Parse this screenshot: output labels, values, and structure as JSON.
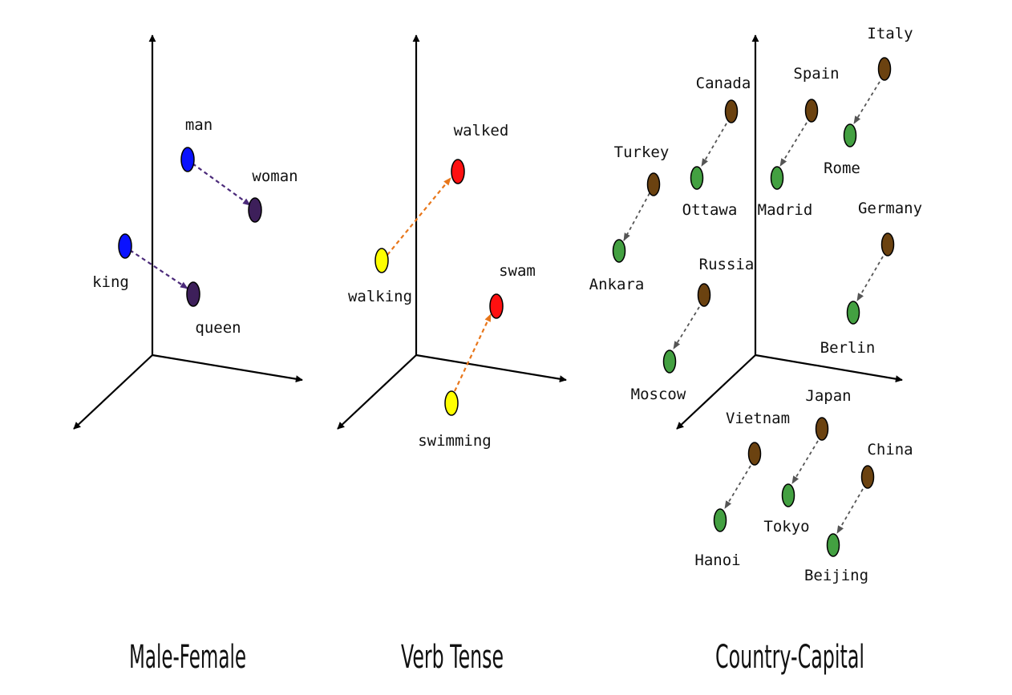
{
  "colors": {
    "axis": "#000000",
    "male_female_point_a": "#0a12ff",
    "male_female_point_b": "#3d1f5a",
    "male_female_arrow": "#4b2a7a",
    "tense_point_a": "#ffff00",
    "tense_point_b": "#ff1010",
    "tense_arrow": "#e8761a",
    "country": "#6b4210",
    "capital": "#43a041",
    "capital_arrow": "#555555"
  },
  "panels": [
    {
      "id": "male-female",
      "title": "Male-Female",
      "pairs": [
        {
          "from": "man",
          "to": "woman"
        },
        {
          "from": "king",
          "to": "queen"
        }
      ]
    },
    {
      "id": "verb-tense",
      "title": "Verb Tense",
      "pairs": [
        {
          "from": "walking",
          "to": "walked"
        },
        {
          "from": "swimming",
          "to": "swam"
        }
      ]
    },
    {
      "id": "country-capital",
      "title": "Country-Capital",
      "pairs": [
        {
          "from": "Turkey",
          "to": "Ankara"
        },
        {
          "from": "Canada",
          "to": "Ottawa"
        },
        {
          "from": "Spain",
          "to": "Madrid"
        },
        {
          "from": "Italy",
          "to": "Rome"
        },
        {
          "from": "Germany",
          "to": "Berlin"
        },
        {
          "from": "Russia",
          "to": "Moscow"
        },
        {
          "from": "Vietnam",
          "to": "Hanoi"
        },
        {
          "from": "Japan",
          "to": "Tokyo"
        },
        {
          "from": "China",
          "to": "Beijing"
        }
      ]
    }
  ]
}
